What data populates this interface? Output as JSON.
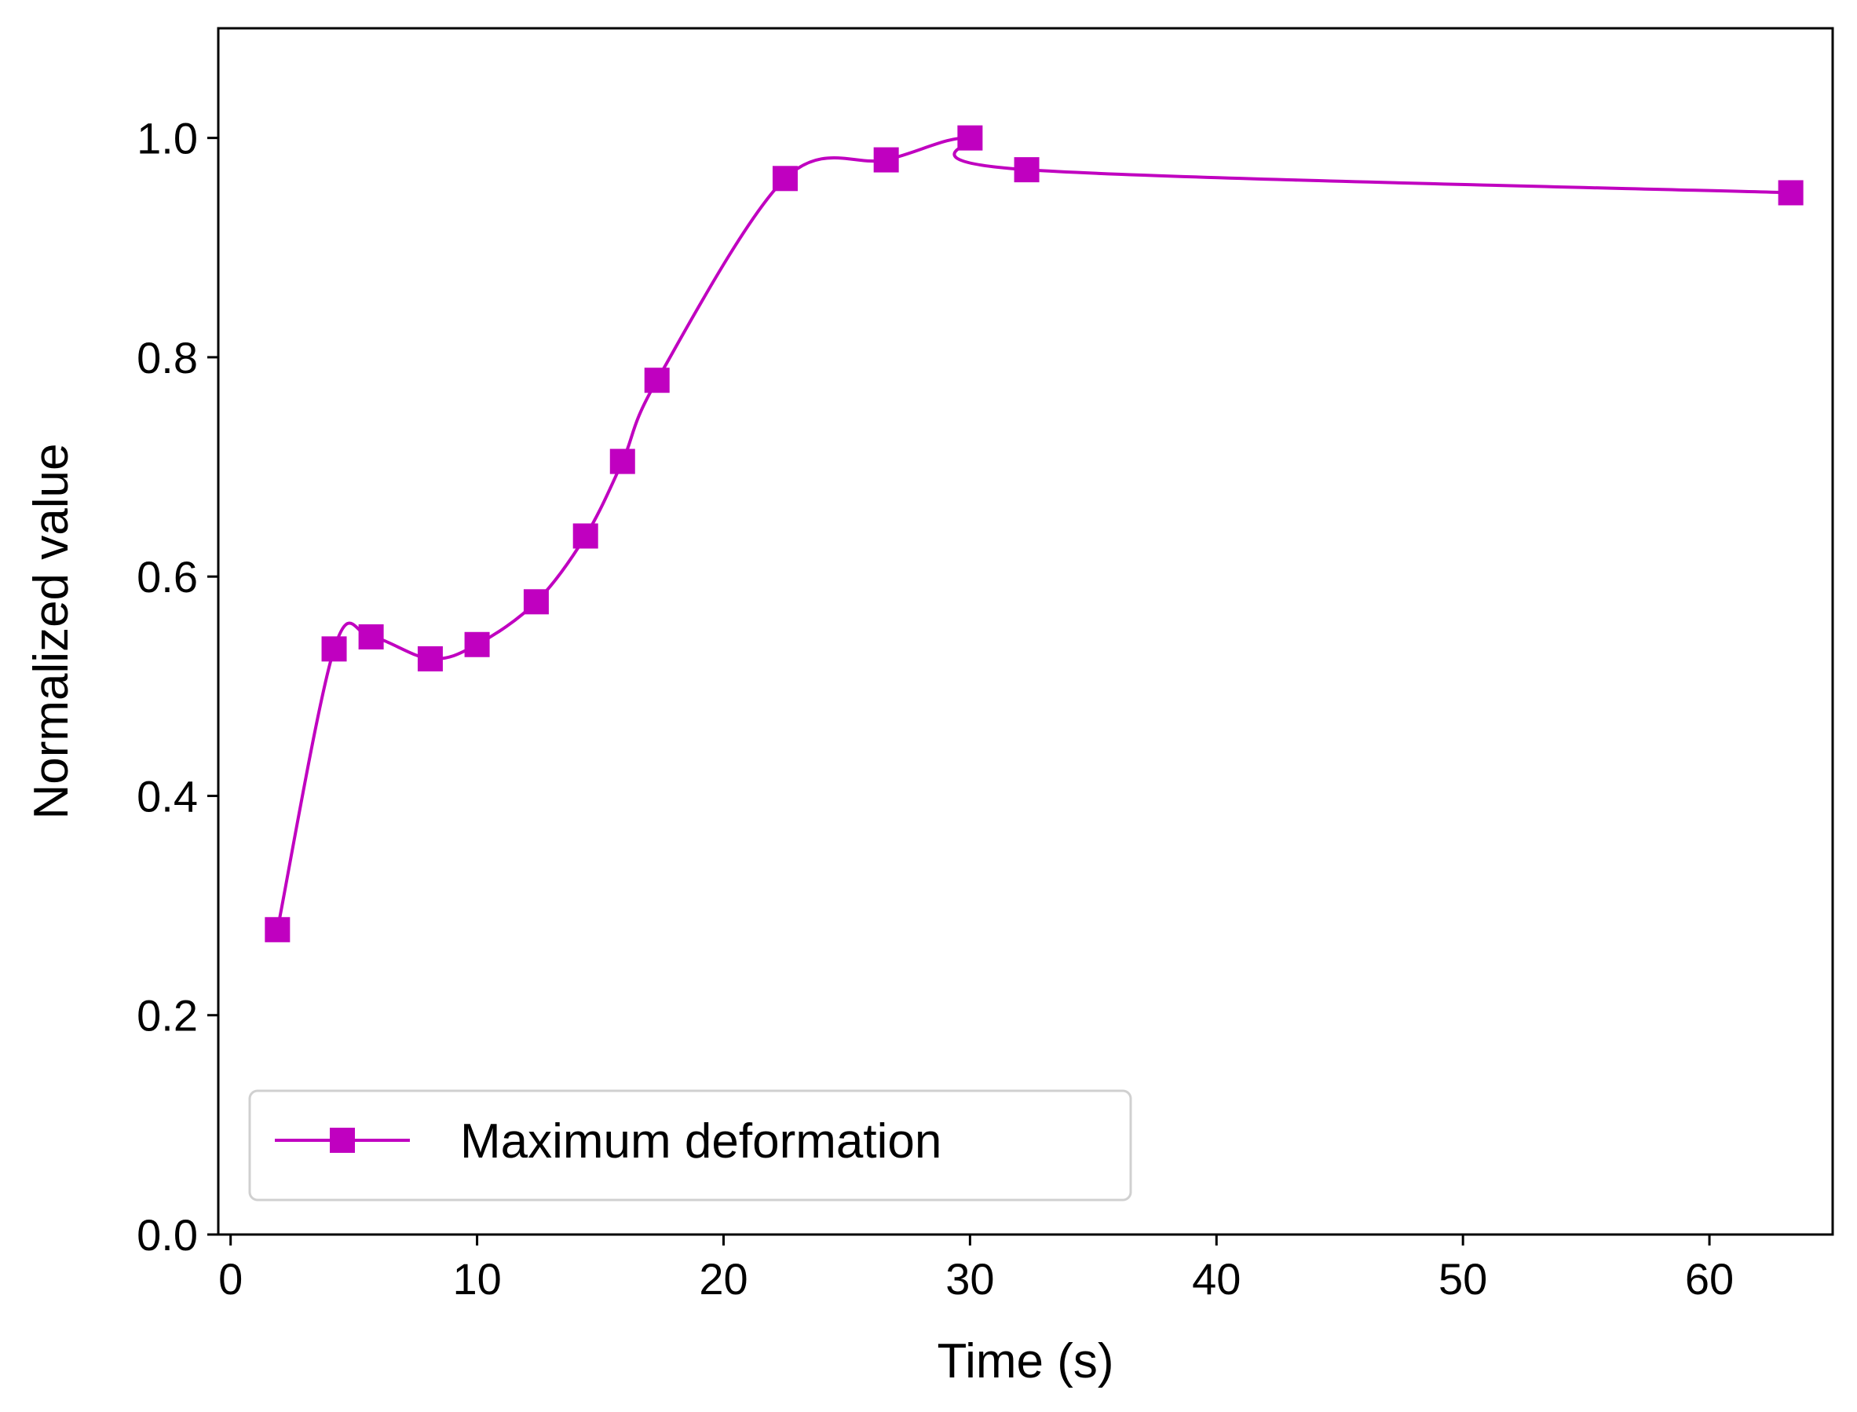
{
  "chart_data": {
    "type": "line",
    "title": "",
    "xlabel": "Time (s)",
    "ylabel": "Normalized value",
    "xlim": [
      -0.5,
      65
    ],
    "ylim": [
      0.0,
      1.1
    ],
    "xticks": [
      0,
      10,
      20,
      30,
      40,
      50,
      60
    ],
    "xtick_labels": [
      "0",
      "10",
      "20",
      "30",
      "40",
      "50",
      "60"
    ],
    "yticks": [
      0.0,
      0.2,
      0.4,
      0.6,
      0.8,
      1.0
    ],
    "ytick_labels": [
      "0.0",
      "0.2",
      "0.4",
      "0.6",
      "0.8",
      "1.0"
    ],
    "grid": false,
    "legend_position": "lower-left",
    "series": [
      {
        "name": "Maximum deformation",
        "color": "#c000c0",
        "marker": "square",
        "x": [
          1.9,
          4.2,
          5.7,
          8.1,
          10.0,
          12.4,
          14.4,
          15.9,
          17.3,
          22.5,
          26.6,
          30.0,
          32.3,
          63.3
        ],
        "y": [
          0.278,
          0.534,
          0.545,
          0.525,
          0.538,
          0.577,
          0.637,
          0.705,
          0.779,
          0.963,
          0.98,
          1.0,
          0.971,
          0.95
        ]
      }
    ]
  }
}
